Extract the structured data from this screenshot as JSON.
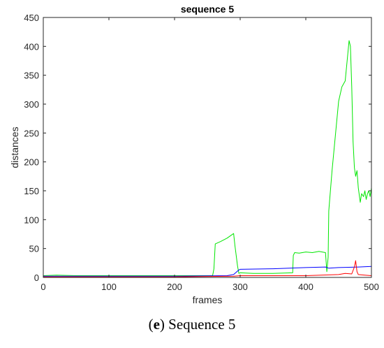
{
  "caption": {
    "letter": "e",
    "text": "Sequence 5"
  },
  "chart_data": {
    "type": "line",
    "title": "sequence 5",
    "xlabel": "frames",
    "ylabel": "distances",
    "xlim": [
      0,
      500
    ],
    "ylim": [
      0,
      450
    ],
    "xticks": [
      0,
      100,
      200,
      300,
      400,
      500
    ],
    "yticks": [
      0,
      50,
      100,
      150,
      200,
      250,
      300,
      350,
      400,
      450
    ],
    "grid": false,
    "legend": "none",
    "series": [
      {
        "color": "#00e600",
        "x": [
          0,
          20,
          50,
          100,
          150,
          200,
          258,
          260,
          262,
          270,
          280,
          290,
          292,
          296,
          298,
          300,
          320,
          350,
          380,
          381,
          383,
          390,
          400,
          410,
          420,
          430,
          432,
          434,
          435,
          440,
          445,
          450,
          455,
          460,
          463,
          466,
          468,
          470,
          472,
          474,
          476,
          478,
          480,
          483,
          485,
          488,
          490,
          492,
          494,
          496,
          498,
          500
        ],
        "y": [
          3,
          4,
          3,
          3,
          3,
          3,
          3,
          15,
          58,
          62,
          68,
          76,
          55,
          20,
          7,
          8,
          7,
          7,
          8,
          38,
          43,
          42,
          44,
          43,
          45,
          43,
          10,
          35,
          115,
          185,
          245,
          305,
          330,
          340,
          375,
          410,
          400,
          330,
          235,
          190,
          175,
          185,
          155,
          130,
          145,
          140,
          150,
          135,
          145,
          150,
          140,
          155
        ]
      },
      {
        "color": "#0000ff",
        "x": [
          0,
          100,
          200,
          280,
          290,
          295,
          298,
          300,
          350,
          400,
          430,
          435,
          450,
          480,
          500
        ],
        "y": [
          2,
          2,
          2,
          3,
          5,
          10,
          13,
          14,
          15,
          17,
          18,
          16,
          17,
          18,
          19
        ]
      },
      {
        "color": "#ff0000",
        "x": [
          0,
          100,
          200,
          290,
          300,
          350,
          400,
          450,
          460,
          470,
          474,
          476,
          478,
          480,
          490,
          500
        ],
        "y": [
          1,
          1,
          1,
          2,
          3,
          3,
          3,
          5,
          7,
          6,
          18,
          29,
          10,
          5,
          4,
          3
        ]
      }
    ]
  }
}
